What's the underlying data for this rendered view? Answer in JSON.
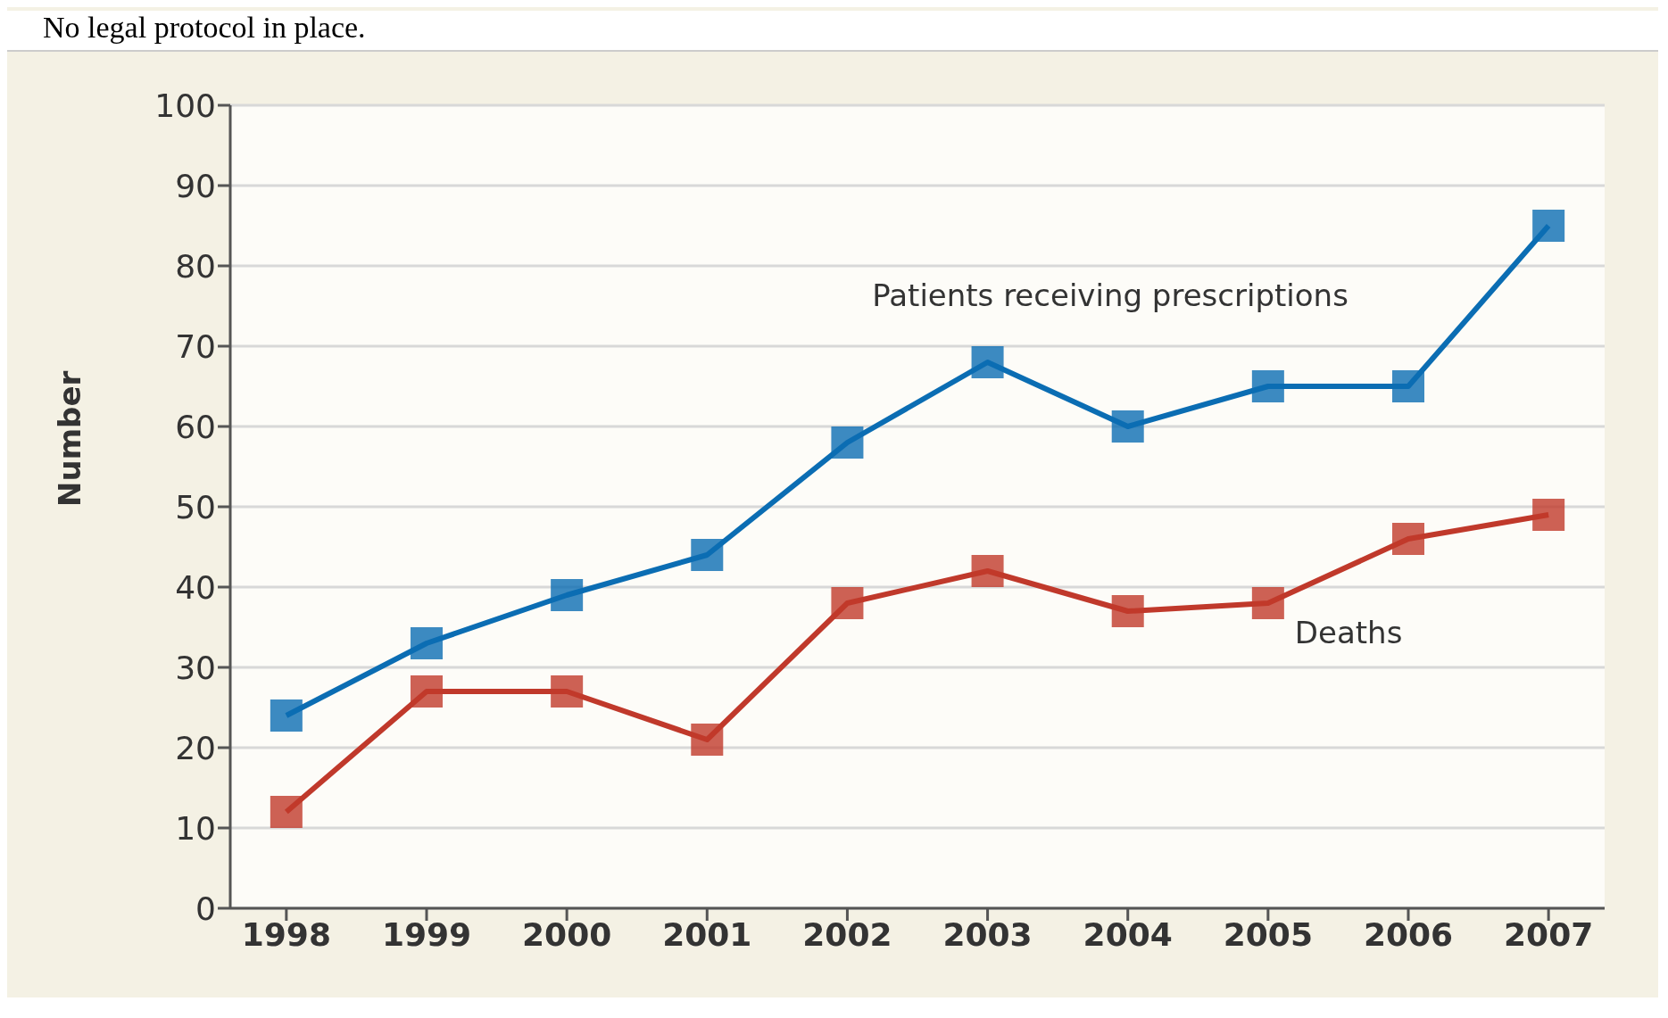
{
  "chart_data": {
    "type": "line",
    "title": "No legal protocol in place.",
    "ylabel": "Number",
    "categories": [
      "1998",
      "1999",
      "2000",
      "2001",
      "2002",
      "2003",
      "2004",
      "2005",
      "2006",
      "2007"
    ],
    "series": [
      {
        "name": "Patients receiving prescriptions",
        "color": "#0b6db3",
        "values": [
          24,
          33,
          39,
          44,
          58,
          68,
          60,
          65,
          65,
          85
        ]
      },
      {
        "name": "Deaths",
        "color": "#c0392b",
        "values": [
          12,
          27,
          27,
          21,
          38,
          42,
          37,
          38,
          46,
          49
        ]
      }
    ],
    "ylim": [
      0,
      100
    ],
    "yticks": [
      0,
      10,
      20,
      30,
      40,
      50,
      60,
      70,
      80,
      90,
      100
    ],
    "grid": "y",
    "marker": "square",
    "line_style": "solid"
  }
}
